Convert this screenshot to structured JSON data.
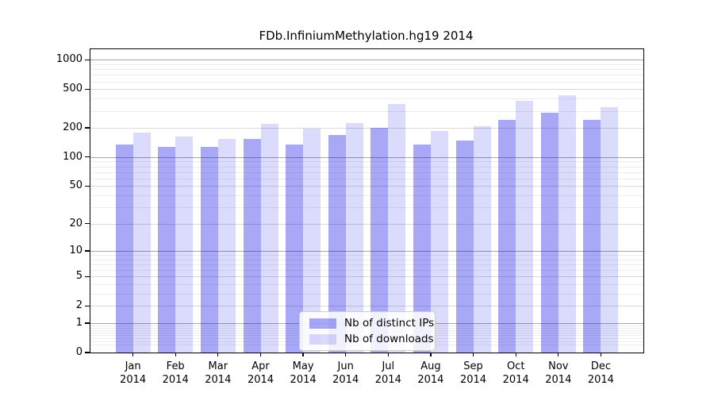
{
  "title": "FDb.InfiniumMethylation.hg19 2014",
  "chart_data": {
    "type": "bar",
    "title": "FDb.InfiniumMethylation.hg19 2014",
    "xlabel": "",
    "ylabel": "",
    "scale": "log1p",
    "grid": "on",
    "legend_position": "lower-center-inside",
    "categories": [
      "Jan 2014",
      "Feb 2014",
      "Mar 2014",
      "Apr 2014",
      "May 2014",
      "Jun 2014",
      "Jul 2014",
      "Aug 2014",
      "Sep 2014",
      "Oct 2014",
      "Nov 2014",
      "Dec 2014"
    ],
    "series": [
      {
        "name": "Nb of distinct IPs",
        "color": "rgba(0,0,230,0.34)",
        "values": [
          134,
          127,
          128,
          153,
          136,
          169,
          200,
          135,
          147,
          242,
          288,
          243
        ]
      },
      {
        "name": "Nb of downloads",
        "color": "rgba(0,0,230,0.14)",
        "values": [
          180,
          163,
          154,
          220,
          197,
          224,
          350,
          187,
          207,
          383,
          430,
          326
        ]
      }
    ],
    "y_ticks": [
      0,
      1,
      2,
      5,
      10,
      20,
      50,
      100,
      200,
      500,
      1000
    ],
    "y_decade_ticks": [
      1,
      10,
      100,
      1000
    ],
    "y_minor_gridlines": [
      0.2,
      0.3,
      0.4,
      0.5,
      0.6,
      0.7,
      0.8,
      0.9,
      3,
      4,
      6,
      7,
      8,
      9,
      30,
      40,
      60,
      70,
      80,
      90,
      300,
      400,
      600,
      700,
      800,
      900
    ],
    "ylim": [
      0,
      1286
    ]
  },
  "colors": {
    "bar_distinct_ips": "rgba(0,0,230,0.34)",
    "bar_downloads": "rgba(0,0,230,0.14)",
    "grid_major": "#a6a6a6",
    "grid_mid": "#d9d9d9",
    "grid_minor": "#ededed",
    "spine": "#000000"
  }
}
